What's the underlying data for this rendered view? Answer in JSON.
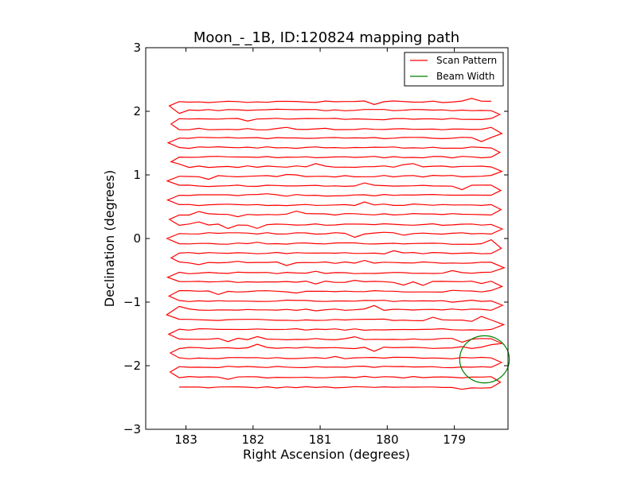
{
  "chart_data": {
    "type": "line",
    "title": "Moon_-_1B, ID:120824 mapping path",
    "xlabel": "Right Ascension (degrees)",
    "ylabel": "Declination (degrees)",
    "xlim": [
      183.6,
      178.2
    ],
    "ylim": [
      -3,
      3
    ],
    "x_inverted": true,
    "xticks": [
      183,
      182,
      181,
      180,
      179
    ],
    "yticks": [
      -3,
      -2,
      -1,
      0,
      1,
      2,
      3
    ],
    "grid": false,
    "legend": {
      "placement": "top-right",
      "entries": [
        "Scan Pattern",
        "Beam Width"
      ]
    },
    "series": [
      {
        "name": "Scan Pattern",
        "color": "#ff0000",
        "style": "raster scan, alternating rows of constant declination",
        "ra_range": [
          183.1,
          178.45
        ],
        "dec_rows": [
          -2.34,
          -2.18,
          -2.02,
          -1.88,
          -1.72,
          -1.58,
          -1.43,
          -1.28,
          -1.12,
          -0.98,
          -0.83,
          -0.68,
          -0.54,
          -0.38,
          -0.23,
          -0.08,
          0.08,
          0.22,
          0.38,
          0.53,
          0.68,
          0.83,
          0.98,
          1.13,
          1.28,
          1.43,
          1.58,
          1.72,
          1.88,
          2.02,
          2.15
        ]
      },
      {
        "name": "Beam Width",
        "color": "#008000",
        "shape": "circle",
        "center": [
          178.55,
          -1.9
        ],
        "radius": 0.37
      }
    ]
  }
}
